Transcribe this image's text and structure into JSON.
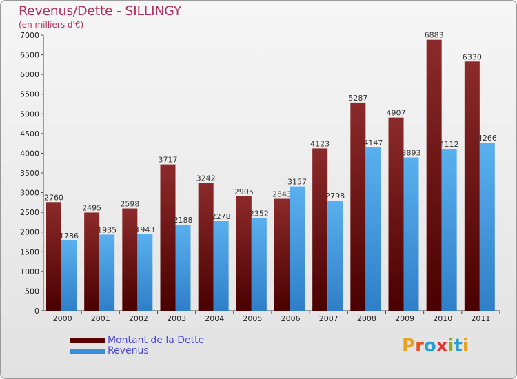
{
  "header": {
    "title": "Revenus/Dette - SILLINGY",
    "subtitle": "(en milliers d'€)"
  },
  "chart_data": {
    "type": "bar",
    "title": "Revenus/Dette - SILLINGY",
    "subtitle": "(en milliers d'€)",
    "categories": [
      "2000",
      "2001",
      "2002",
      "2003",
      "2004",
      "2005",
      "2006",
      "2007",
      "2008",
      "2009",
      "2010",
      "2011"
    ],
    "series": [
      {
        "name": "Montant de la Dette",
        "color": "#7a1c1c",
        "values": [
          2760,
          2495,
          2598,
          3717,
          3242,
          2905,
          2843,
          4123,
          5287,
          4907,
          6883,
          6330
        ]
      },
      {
        "name": "Revenus",
        "color": "#4aa3e6",
        "values": [
          1786,
          1935,
          1943,
          2188,
          2278,
          2352,
          3157,
          2798,
          4147,
          3893,
          4112,
          4266
        ]
      }
    ],
    "ylim": [
      0,
      7000
    ],
    "yticks": [
      0,
      500,
      1000,
      1500,
      2000,
      2500,
      3000,
      3500,
      4000,
      4500,
      5000,
      5500,
      6000,
      6500,
      7000
    ],
    "grid": false,
    "legend_position": "bottom-left"
  },
  "legend": {
    "debt_label": "Montant de la Dette",
    "rev_label": "Revenus"
  },
  "brand": {
    "letters": [
      "P",
      "r",
      "o",
      "x",
      "i",
      "t",
      "i"
    ],
    "colors": [
      "#e8a020",
      "#e85020",
      "#2a9fd6",
      "#e83030",
      "#8ab020",
      "#2a9fd6",
      "#e8a020"
    ]
  }
}
